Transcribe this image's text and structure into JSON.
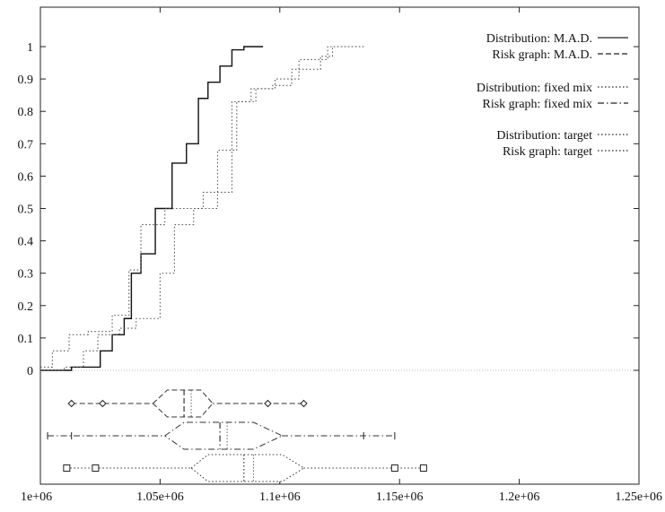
{
  "chart_data": {
    "type": "line",
    "title": "",
    "xlabel": "",
    "ylabel": "",
    "xlim": [
      1000000,
      1250000
    ],
    "ylim": [
      0,
      1
    ],
    "grid": false,
    "legend_position": "top-right",
    "x_ticks": [
      {
        "value": 1000000,
        "label": "1e+06"
      },
      {
        "value": 1050000,
        "label": "1.05e+06"
      },
      {
        "value": 1100000,
        "label": "1.1e+06"
      },
      {
        "value": 1150000,
        "label": "1.15e+06"
      },
      {
        "value": 1200000,
        "label": "1.2e+06"
      },
      {
        "value": 1250000,
        "label": "1.25e+06"
      }
    ],
    "y_ticks": [
      {
        "value": 0,
        "label": "0"
      },
      {
        "value": 0.1,
        "label": "0.1"
      },
      {
        "value": 0.2,
        "label": "0.2"
      },
      {
        "value": 0.3,
        "label": "0.3"
      },
      {
        "value": 0.4,
        "label": "0.4"
      },
      {
        "value": 0.5,
        "label": "0.5"
      },
      {
        "value": 0.6,
        "label": "0.6"
      },
      {
        "value": 0.7,
        "label": "0.7"
      },
      {
        "value": 0.8,
        "label": "0.8"
      },
      {
        "value": 0.9,
        "label": "0.9"
      },
      {
        "value": 1,
        "label": "1"
      }
    ],
    "series": [
      {
        "name": "Distribution: M.A.D.",
        "style": "solid",
        "color": "#111111",
        "points": [
          [
            1000000,
            0
          ],
          [
            1013000,
            0.01
          ],
          [
            1025000,
            0.06
          ],
          [
            1030000,
            0.11
          ],
          [
            1035000,
            0.16
          ],
          [
            1038000,
            0.3
          ],
          [
            1042000,
            0.36
          ],
          [
            1048000,
            0.5
          ],
          [
            1055000,
            0.64
          ],
          [
            1061000,
            0.7
          ],
          [
            1066000,
            0.84
          ],
          [
            1070000,
            0.89
          ],
          [
            1075000,
            0.94
          ],
          [
            1080000,
            0.99
          ],
          [
            1085000,
            1
          ],
          [
            1093000,
            1
          ]
        ]
      },
      {
        "name": "Distribution: fixed mix",
        "style": "dotted",
        "color": "#555555",
        "points": [
          [
            1000000,
            0.01
          ],
          [
            1005000,
            0.06
          ],
          [
            1012000,
            0.11
          ],
          [
            1020000,
            0.12
          ],
          [
            1030000,
            0.17
          ],
          [
            1037000,
            0.31
          ],
          [
            1042000,
            0.45
          ],
          [
            1052000,
            0.5
          ],
          [
            1068000,
            0.55
          ],
          [
            1080000,
            0.83
          ],
          [
            1088000,
            0.87
          ],
          [
            1097000,
            0.88
          ],
          [
            1105000,
            0.93
          ],
          [
            1117000,
            0.97
          ],
          [
            1122000,
            1
          ],
          [
            1135000,
            1
          ]
        ]
      },
      {
        "name": "Distribution: target",
        "style": "dotted",
        "color": "#555555",
        "points": [
          [
            1000000,
            0
          ],
          [
            1010000,
            0.01
          ],
          [
            1018000,
            0.06
          ],
          [
            1024000,
            0.11
          ],
          [
            1033000,
            0.13
          ],
          [
            1040000,
            0.16
          ],
          [
            1050000,
            0.3
          ],
          [
            1056000,
            0.45
          ],
          [
            1064000,
            0.5
          ],
          [
            1074000,
            0.68
          ],
          [
            1082000,
            0.83
          ],
          [
            1090000,
            0.87
          ],
          [
            1098000,
            0.9
          ],
          [
            1108000,
            0.96
          ],
          [
            1120000,
            1
          ],
          [
            1136000,
            1
          ]
        ]
      }
    ],
    "legend": [
      {
        "label": "Distribution: M.A.D.",
        "style": "solid"
      },
      {
        "label": "Risk graph: M.A.D.",
        "style": "dashed"
      },
      {
        "label": "Distribution: fixed mix",
        "style": "dotted"
      },
      {
        "label": "Risk graph: fixed mix",
        "style": "dashdot"
      },
      {
        "label": "Distribution: target",
        "style": "dotted"
      },
      {
        "label": "Risk graph: target",
        "style": "dotted"
      }
    ],
    "risk_graphs": [
      {
        "name": "Risk graph: M.A.D.",
        "style": "dashed",
        "marker": "diamond",
        "whisker_low": 1013000,
        "whisker_high": 1110000,
        "q1": 1053000,
        "median": 1060000,
        "q3": 1067000,
        "mean": 1063000,
        "box_left": 1047000,
        "box_right": 1072000,
        "outer_markers": [
          1013000,
          1026000,
          1095000,
          1110000
        ]
      },
      {
        "name": "Risk graph: fixed mix",
        "style": "dashdot",
        "marker": "plus",
        "whisker_low": 1003000,
        "whisker_high": 1148000,
        "q1": 1060000,
        "median": 1075000,
        "q3": 1089000,
        "mean": 1078000,
        "box_left": 1052000,
        "box_right": 1101000,
        "outer_markers": [
          1003000,
          1013000,
          1135000,
          1148000
        ]
      },
      {
        "name": "Risk graph: target",
        "style": "dotted",
        "marker": "square",
        "whisker_low": 1011000,
        "whisker_high": 1160000,
        "q1": 1070000,
        "median": 1085000,
        "q3": 1101000,
        "mean": 1089000,
        "box_left": 1063000,
        "box_right": 1110000,
        "outer_markers": [
          1011000,
          1023000,
          1148000,
          1160000
        ]
      }
    ]
  }
}
